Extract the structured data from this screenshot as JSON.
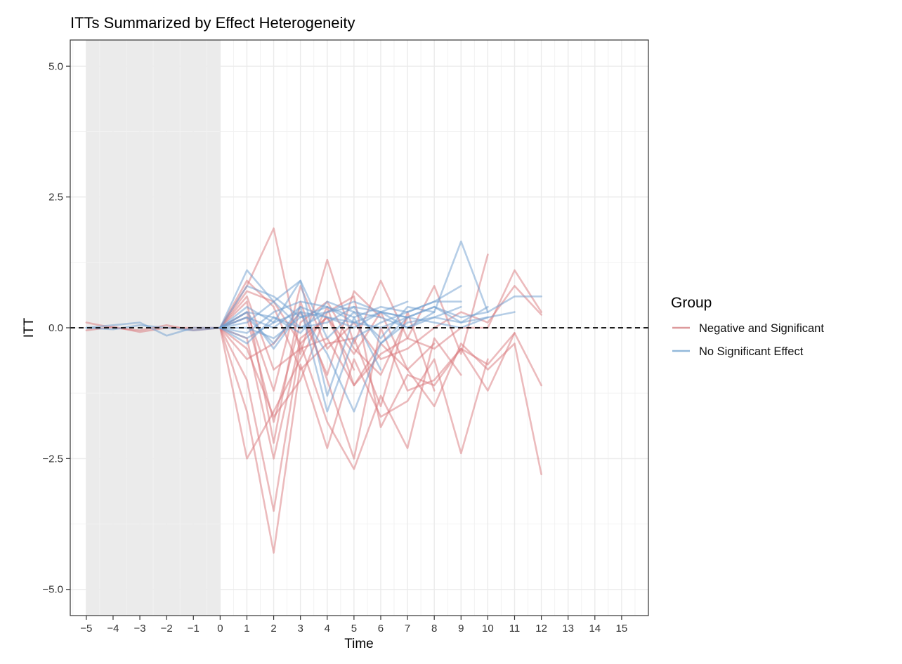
{
  "chart_data": {
    "type": "line",
    "title": "ITTs Summarized by Effect Heterogeneity",
    "xlabel": "Time",
    "ylabel": "ITT",
    "xlim": [
      -5.6,
      16
    ],
    "ylim": [
      -5.5,
      5.5
    ],
    "x_ticks": [
      -5,
      -4,
      -3,
      -2,
      -1,
      0,
      1,
      2,
      3,
      4,
      5,
      6,
      7,
      8,
      9,
      10,
      11,
      12,
      13,
      14,
      15
    ],
    "y_ticks": [
      -5.0,
      -2.5,
      0.0,
      2.5,
      5.0
    ],
    "y_tick_labels": [
      "−5.0",
      "−2.5",
      "0.0",
      "2.5",
      "5.0"
    ],
    "pre_period_shading": [
      -5,
      0
    ],
    "reference_line": {
      "y": 0,
      "style": "dashed"
    },
    "grid": true,
    "legend": {
      "title": "Group",
      "placement": "right",
      "entries": [
        {
          "label": "Negative and Significant",
          "color": "#dd9a9c"
        },
        {
          "label": "No Significant Effect",
          "color": "#92b8da"
        }
      ]
    },
    "colors": {
      "negative": "#d9787c",
      "no_effect": "#6e9ecf",
      "shade": "#ebebeb",
      "grid": "#ebebeb"
    },
    "series": [
      {
        "group": "negative",
        "x": [
          -5,
          -4,
          -3,
          -2,
          -1,
          0,
          1,
          2,
          3,
          4,
          5,
          6,
          7,
          8,
          9,
          10,
          11,
          12
        ],
        "y": [
          0.1,
          0.0,
          -0.05,
          0.05,
          -0.05,
          0.0,
          -2.5,
          -1.6,
          -0.6,
          0.4,
          -1.1,
          -0.3,
          -0.8,
          -1.5,
          -0.3,
          -0.8,
          -0.3,
          -2.8
        ]
      },
      {
        "group": "negative",
        "x": [
          -5,
          -4,
          -3,
          -2,
          -1,
          0,
          1,
          2,
          3,
          4,
          5,
          6,
          7,
          8,
          9,
          10,
          11,
          12
        ],
        "y": [
          -0.05,
          0.02,
          -0.08,
          0.0,
          0.0,
          0.0,
          0.8,
          1.9,
          -0.5,
          1.3,
          -0.3,
          0.9,
          -0.2,
          0.8,
          -0.5,
          1.4,
          null,
          null
        ]
      },
      {
        "group": "negative",
        "x": [
          0,
          1,
          2,
          3,
          4,
          5,
          6,
          7,
          8,
          9,
          10,
          11,
          12
        ],
        "y": [
          0.0,
          -1.6,
          -4.3,
          -0.7,
          -2.3,
          -0.6,
          -1.7,
          -1.4,
          -0.6,
          -2.4,
          -0.6,
          null,
          null
        ]
      },
      {
        "group": "negative",
        "x": [
          0,
          1,
          2,
          3,
          4,
          5,
          6,
          7,
          8,
          9
        ],
        "y": [
          0.0,
          -1.0,
          -3.5,
          -0.3,
          -1.8,
          -2.7,
          -1.3,
          -2.3,
          -0.2,
          -0.9
        ]
      },
      {
        "group": "negative",
        "x": [
          0,
          1,
          2,
          3,
          4,
          5,
          6,
          7,
          8,
          9,
          10,
          11,
          12
        ],
        "y": [
          0.0,
          0.5,
          -2.2,
          0.5,
          -1.0,
          -2.5,
          0.0,
          -1.2,
          -1.0,
          -0.4,
          -1.2,
          -0.1,
          -1.1
        ]
      },
      {
        "group": "negative",
        "x": [
          0,
          1,
          2,
          3,
          4,
          5,
          6,
          7,
          8,
          9,
          10,
          11,
          12
        ],
        "y": [
          0.0,
          -0.4,
          -1.7,
          -1.0,
          0.3,
          0.6,
          -1.9,
          -0.9,
          -1.1,
          -0.4,
          -0.7,
          -0.1,
          null
        ]
      },
      {
        "group": "negative",
        "x": [
          0,
          1,
          2,
          3,
          4,
          5,
          6,
          7,
          8,
          9,
          10,
          11,
          12
        ],
        "y": [
          0.0,
          0.6,
          -0.8,
          -0.4,
          -0.2,
          -1.1,
          -0.5,
          -0.2,
          -0.4,
          0.0,
          0.0,
          1.1,
          0.3
        ]
      },
      {
        "group": "negative",
        "x": [
          0,
          1,
          2,
          3,
          4,
          5,
          6,
          7,
          8,
          9,
          10,
          11,
          12
        ],
        "y": [
          0.0,
          0.3,
          -1.2,
          0.8,
          -0.4,
          0.1,
          -0.6,
          -0.4,
          0.0,
          0.3,
          0.1,
          0.8,
          0.25
        ]
      },
      {
        "group": "negative",
        "x": [
          0,
          1,
          2,
          3,
          4,
          5,
          6,
          7,
          8
        ],
        "y": [
          0.0,
          -0.2,
          -2.5,
          -0.2,
          0.2,
          -0.5,
          0.3,
          -0.8,
          -0.3
        ]
      },
      {
        "group": "negative",
        "x": [
          0,
          1,
          2,
          3,
          4,
          5,
          6,
          7,
          8
        ],
        "y": [
          0.0,
          0.9,
          0.4,
          -0.8,
          -0.3,
          -0.2,
          -1.5,
          0.3,
          -1.2
        ]
      },
      {
        "group": "negative",
        "x": [
          0,
          1,
          2,
          3,
          4,
          5,
          6
        ],
        "y": [
          0.0,
          -0.6,
          -0.3,
          0.3,
          -0.9,
          0.7,
          0.2
        ]
      },
      {
        "group": "negative",
        "x": [
          0,
          1,
          2,
          3,
          4,
          5,
          6,
          7
        ],
        "y": [
          0.0,
          0.2,
          -1.8,
          0.1,
          0.5,
          -0.4,
          -0.9,
          0.2
        ]
      },
      {
        "group": "negative",
        "x": [
          0,
          1,
          2,
          3,
          4,
          5
        ],
        "y": [
          0.0,
          0.7,
          0.5,
          -0.3,
          0.2,
          -0.8
        ]
      },
      {
        "group": "no_effect",
        "x": [
          -5,
          -4,
          -3,
          -2,
          -1,
          0,
          1,
          2,
          3,
          4,
          5,
          6,
          7,
          8,
          9,
          10
        ],
        "y": [
          0.0,
          0.05,
          0.1,
          -0.15,
          0.0,
          0.0,
          1.1,
          0.5,
          0.9,
          -0.2,
          0.3,
          0.2,
          0.0,
          0.3,
          1.65,
          0.3
        ]
      },
      {
        "group": "no_effect",
        "x": [
          -5,
          -4,
          -3,
          -2,
          -1,
          0,
          1,
          2,
          3,
          4,
          5,
          6,
          7,
          8,
          9,
          10
        ],
        "y": [
          0.0,
          -0.03,
          0.05,
          0.0,
          -0.05,
          0.0,
          0.3,
          -0.4,
          0.3,
          -0.5,
          -1.6,
          -0.3,
          0.2,
          0.4,
          0.1,
          0.4
        ]
      },
      {
        "group": "no_effect",
        "x": [
          0,
          1,
          2,
          3,
          4,
          5,
          6,
          7,
          8,
          9,
          10,
          11,
          12
        ],
        "y": [
          0.0,
          0.8,
          0.6,
          0.2,
          0.3,
          0.4,
          0.3,
          0.2,
          0.4,
          0.2,
          0.3,
          0.6,
          0.6
        ]
      },
      {
        "group": "no_effect",
        "x": [
          0,
          1,
          2,
          3,
          4,
          5,
          6,
          7,
          8,
          9
        ],
        "y": [
          0.0,
          0.2,
          -0.3,
          0.4,
          -1.6,
          -0.2,
          0.1,
          0.3,
          0.5,
          0.8
        ]
      },
      {
        "group": "no_effect",
        "x": [
          0,
          1,
          2,
          3,
          4,
          5,
          6,
          7,
          8,
          9
        ],
        "y": [
          0.0,
          -0.1,
          0.3,
          0.5,
          0.4,
          0.2,
          0.4,
          0.3,
          0.5,
          0.5
        ]
      },
      {
        "group": "no_effect",
        "x": [
          0,
          1,
          2,
          3,
          4,
          5,
          6,
          7,
          8,
          9,
          10,
          11
        ],
        "y": [
          0.0,
          0.4,
          0.1,
          0.3,
          0.2,
          0.1,
          0.0,
          0.2,
          0.1,
          0.0,
          0.2,
          0.3
        ]
      },
      {
        "group": "no_effect",
        "x": [
          0,
          1,
          2,
          3,
          4,
          5,
          6,
          7,
          8
        ],
        "y": [
          0.0,
          -0.3,
          0.2,
          -0.1,
          0.5,
          0.3,
          -0.2,
          0.4,
          0.3
        ]
      },
      {
        "group": "no_effect",
        "x": [
          0,
          1,
          2,
          3,
          4,
          5,
          6,
          7
        ],
        "y": [
          0.0,
          0.1,
          0.5,
          0.0,
          0.3,
          0.5,
          0.3,
          0.2
        ]
      },
      {
        "group": "no_effect",
        "x": [
          0,
          1,
          2,
          3,
          4,
          5,
          6
        ],
        "y": [
          0.0,
          -0.2,
          0.1,
          0.9,
          -1.3,
          0.2,
          -0.8
        ]
      },
      {
        "group": "no_effect",
        "x": [
          0,
          1,
          2,
          3,
          4,
          5,
          6,
          7,
          8,
          9,
          10
        ],
        "y": [
          0.0,
          0.2,
          0.0,
          0.4,
          0.2,
          0.0,
          0.3,
          0.0,
          0.2,
          0.1,
          0.2
        ]
      },
      {
        "group": "no_effect",
        "x": [
          0,
          1,
          2,
          3,
          4,
          5,
          6,
          7
        ],
        "y": [
          0.0,
          0.0,
          -0.2,
          0.2,
          0.4,
          0.1,
          0.3,
          0.5
        ]
      },
      {
        "group": "no_effect",
        "x": [
          0,
          1,
          2,
          3,
          4,
          5,
          6,
          7,
          8,
          9
        ],
        "y": [
          0.0,
          0.3,
          0.2,
          0.0,
          0.1,
          0.4,
          -0.3,
          0.1,
          0.2,
          0.4
        ]
      }
    ]
  }
}
